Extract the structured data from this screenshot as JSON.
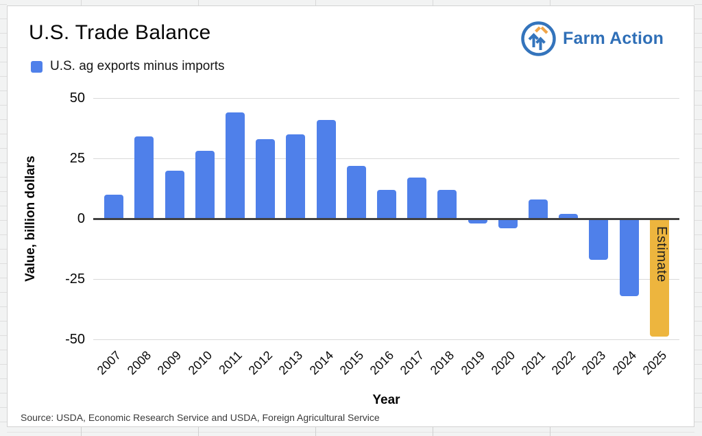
{
  "header": {
    "brand": "Farm Action"
  },
  "icons": {
    "logo": "up-arrows-circle-icon"
  },
  "colors": {
    "bar_blue": "#4F80EA",
    "bar_orange": "#EDB53E",
    "brand_blue": "#2F6FB7",
    "logo_ring_blue": "#3474BC",
    "logo_orange": "#F0A549",
    "grid_line": "#D9D9D9",
    "zero_line": "#404040",
    "estimate_text": "#1F1F1F"
  },
  "chart_data": {
    "type": "bar",
    "title": "U.S. Trade Balance",
    "series_label": "U.S. ag exports minus imports",
    "categories": [
      "2007",
      "2008",
      "2009",
      "2010",
      "2011",
      "2012",
      "2013",
      "2014",
      "2015",
      "2016",
      "2017",
      "2018",
      "2019",
      "2020",
      "2021",
      "2022",
      "2023",
      "2024",
      "2025"
    ],
    "values": [
      10,
      34,
      20,
      28,
      44,
      33,
      35,
      41,
      22,
      12,
      17,
      12,
      -2,
      -4,
      8,
      2,
      -17,
      -32,
      -49
    ],
    "xlabel": "Year",
    "ylabel": "Value, billion dollars",
    "ylim": [
      -50,
      50
    ],
    "yticks": [
      50,
      25,
      0,
      -25,
      -50
    ],
    "grid": true,
    "legend_position": "top-left",
    "x_tick_rotation": -45,
    "highlight": {
      "category": "2025",
      "color": "#EDB53E"
    },
    "annotations": [
      {
        "category": "2025",
        "label": "Estimate"
      }
    ]
  },
  "footer": {
    "source": "Source: USDA, Economic Research Service and USDA, Foreign Agricultural Service"
  }
}
